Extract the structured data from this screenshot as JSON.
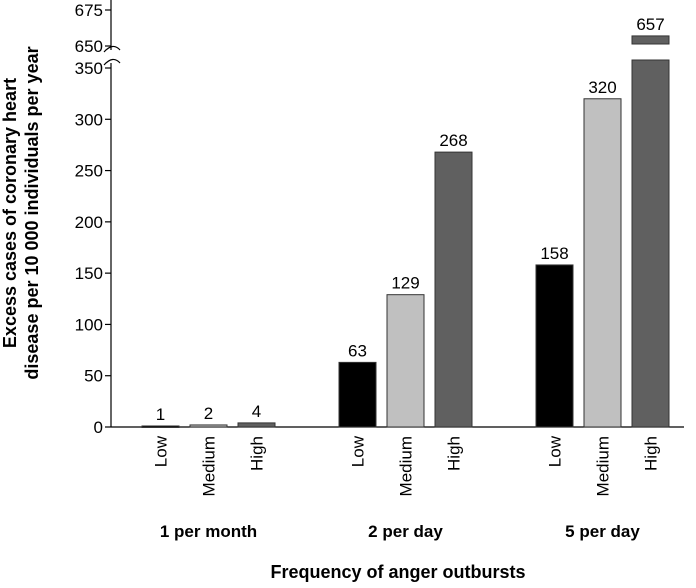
{
  "chart_data": {
    "type": "bar",
    "title": "",
    "xlabel": "Frequency of anger outbursts",
    "ylabel": [
      "Excess cases of coronary heart",
      "disease per 10 000 individuals per year"
    ],
    "ylim": [
      0,
      675
    ],
    "axis_break": {
      "from": 350,
      "to": 650
    },
    "yticks": [
      0,
      50,
      100,
      150,
      200,
      250,
      300,
      350,
      650,
      675
    ],
    "groups": [
      "1 per month",
      "2 per day",
      "5 per day"
    ],
    "levels": [
      "Low",
      "Medium",
      "High"
    ],
    "level_colors": [
      "#000000",
      "#c0c0c0",
      "#606060"
    ],
    "values": [
      [
        1,
        2,
        4
      ],
      [
        63,
        129,
        268
      ],
      [
        158,
        320,
        657
      ]
    ],
    "grid": false,
    "legend": "none"
  }
}
